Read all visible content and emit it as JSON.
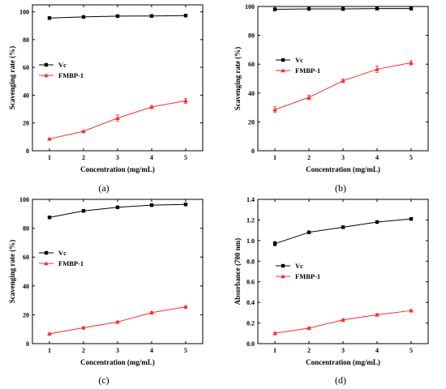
{
  "figure": {
    "panels": [
      {
        "tag": "(a)"
      },
      {
        "tag": "(b)"
      },
      {
        "tag": "(c)"
      },
      {
        "tag": "(d)"
      }
    ]
  },
  "chart_data": [
    {
      "type": "line",
      "panel": "(a)",
      "title": "",
      "xlabel": "Concentration (mg/mL)",
      "ylabel": "Scavenging rate (%)",
      "x": [
        1,
        2,
        3,
        4,
        5
      ],
      "xlim": [
        0.5,
        5.5
      ],
      "ylim": [
        0,
        105
      ],
      "xticks": [
        1,
        2,
        3,
        4,
        5
      ],
      "yticks": [
        0,
        20,
        40,
        60,
        80,
        100
      ],
      "grid": false,
      "legend_position": "center-left",
      "series": [
        {
          "name": "Vc",
          "color": "#000000",
          "marker": "square",
          "values": [
            95.5,
            96.3,
            96.9,
            97.0,
            97.3
          ],
          "errors": [
            0.5,
            0.5,
            0.5,
            0.5,
            0.5
          ]
        },
        {
          "name": "FMBP-1",
          "color": "#ff2a2a",
          "marker": "triangle",
          "values": [
            8.5,
            14.0,
            23.5,
            31.5,
            36.0
          ],
          "errors": [
            0.6,
            0.6,
            2.3,
            1.2,
            1.8
          ]
        }
      ]
    },
    {
      "type": "line",
      "panel": "(b)",
      "title": "",
      "xlabel": "Concentration (mg/mL)",
      "ylabel": "Scavenging rate (%)",
      "x": [
        1,
        2,
        3,
        4,
        5
      ],
      "xlim": [
        0.5,
        5.5
      ],
      "ylim": [
        0,
        100
      ],
      "xticks": [
        1,
        2,
        3,
        4,
        5
      ],
      "yticks": [
        0,
        20,
        40,
        60,
        80,
        100
      ],
      "grid": false,
      "legend_position": "upper-left",
      "series": [
        {
          "name": "Vc",
          "color": "#000000",
          "marker": "square",
          "values": [
            98.0,
            98.3,
            98.3,
            98.5,
            98.5
          ],
          "errors": [
            0.8,
            0.8,
            1.0,
            0.8,
            0.8
          ]
        },
        {
          "name": "FMBP-1",
          "color": "#ff2a2a",
          "marker": "triangle",
          "values": [
            28.5,
            37.0,
            48.5,
            56.5,
            61.0
          ],
          "errors": [
            2.0,
            1.5,
            1.2,
            2.2,
            1.5
          ]
        }
      ]
    },
    {
      "type": "line",
      "panel": "(c)",
      "title": "",
      "xlabel": "Concentration (mg/mL)",
      "ylabel": "Scavenging rate (%)",
      "x": [
        1,
        2,
        3,
        4,
        5
      ],
      "xlim": [
        0.5,
        5.5
      ],
      "ylim": [
        0,
        100
      ],
      "xticks": [
        1,
        2,
        3,
        4,
        5
      ],
      "yticks": [
        0,
        20,
        40,
        60,
        80,
        100
      ],
      "grid": false,
      "legend_position": "center-left",
      "series": [
        {
          "name": "Vc",
          "color": "#000000",
          "marker": "square",
          "values": [
            87.5,
            92.0,
            94.5,
            96.0,
            96.5
          ],
          "errors": [
            0.8,
            0.6,
            0.5,
            0.5,
            0.5
          ]
        },
        {
          "name": "FMBP-1",
          "color": "#ff2a2a",
          "marker": "triangle",
          "values": [
            6.8,
            11.0,
            15.0,
            21.5,
            25.5
          ],
          "errors": [
            0.5,
            0.5,
            0.6,
            0.8,
            0.6
          ]
        }
      ]
    },
    {
      "type": "line",
      "panel": "(d)",
      "title": "",
      "xlabel": "Concentration (mg/mL)",
      "ylabel": "Absorbance (700 nm)",
      "x": [
        1,
        2,
        3,
        4,
        5
      ],
      "xlim": [
        0.5,
        5.5
      ],
      "ylim": [
        0,
        1.4
      ],
      "xticks": [
        1,
        2,
        3,
        4,
        5
      ],
      "yticks": [
        0.0,
        0.2,
        0.4,
        0.6,
        0.8,
        1.0,
        1.2,
        1.4
      ],
      "ytick_labels": [
        "0.0",
        "0.2",
        "0.4",
        "0.6",
        "0.8",
        "1.0",
        "1.2",
        "1.4"
      ],
      "grid": false,
      "legend_position": "center-left",
      "series": [
        {
          "name": "Vc",
          "color": "#000000",
          "marker": "square",
          "values": [
            0.97,
            1.08,
            1.13,
            1.18,
            1.21
          ],
          "errors": [
            0.02,
            0.01,
            0.01,
            0.01,
            0.01
          ]
        },
        {
          "name": "FMBP-1",
          "color": "#ff2a2a",
          "marker": "triangle",
          "values": [
            0.1,
            0.15,
            0.23,
            0.28,
            0.32
          ],
          "errors": [
            0.01,
            0.01,
            0.01,
            0.01,
            0.01
          ]
        }
      ]
    }
  ]
}
